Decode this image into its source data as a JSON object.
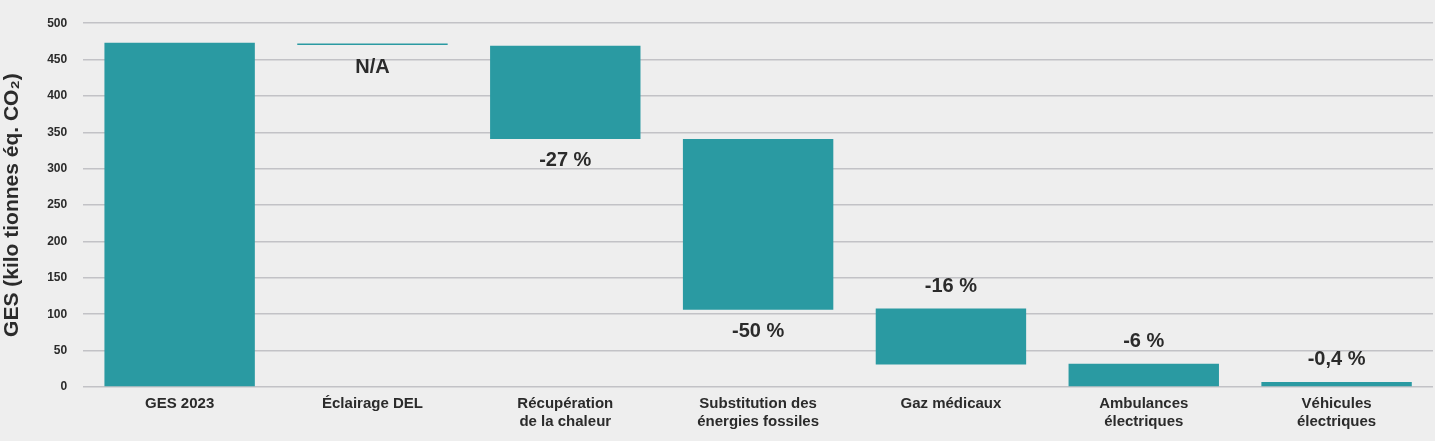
{
  "chart_data": {
    "type": "bar",
    "ylabel": "GES (kilo tionnes éq. CO₂)",
    "categories": [
      "GES 2023",
      "Éclairage DEL",
      "Récupération de la chaleur",
      "Substitution des énergies fossiles",
      "Gaz médicaux",
      "Ambulances électriques",
      "Véhicules électriques"
    ],
    "values": [
      473,
      2,
      128,
      235,
      77,
      32,
      7
    ],
    "base": [
      0,
      470,
      341,
      106,
      31,
      0,
      0
    ],
    "annotations": [
      {
        "text": "N/A",
        "x": "Éclairage DEL",
        "y": 470
      },
      {
        "text": "-27 %",
        "x": "Récupération de la chaleur",
        "y": 341
      },
      {
        "text": "-50 %",
        "x": "Substitution des énergies fossiles",
        "y": 106
      },
      {
        "text": "-16 %",
        "x": "Gaz médicaux",
        "y": 108
      },
      {
        "text": "-6 %",
        "x": "Ambulances électriques",
        "y": 32
      },
      {
        "text": "-0,4 %",
        "x": "Véhicules électriques",
        "y": 7
      }
    ],
    "color": "#2a9aa2",
    "ylim": [
      0,
      500
    ],
    "yticks": [
      0,
      50,
      100,
      150,
      200,
      250,
      300,
      350,
      400,
      450,
      500
    ],
    "grid": "y",
    "legend": false
  }
}
